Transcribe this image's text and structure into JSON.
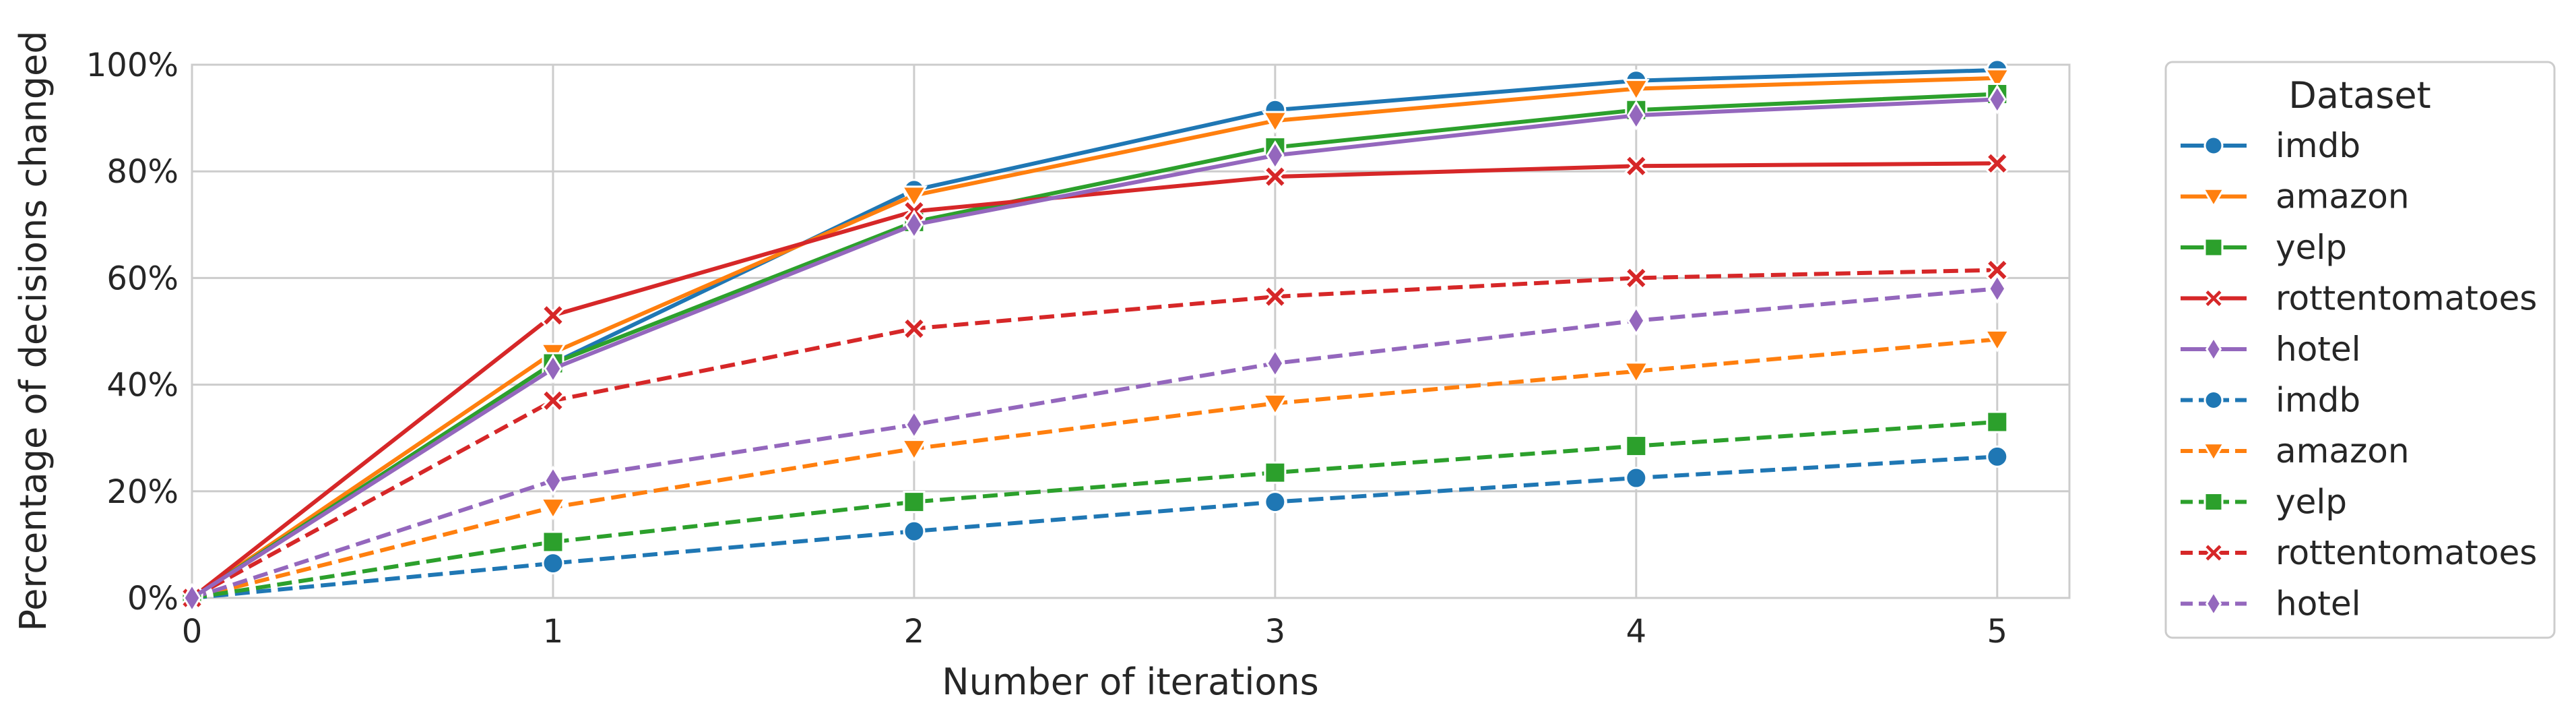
{
  "chart_data": {
    "type": "line",
    "xlabel": "Number of iterations",
    "ylabel": "Percentage of decisions changed",
    "x": [
      0,
      1,
      2,
      3,
      4,
      5
    ],
    "xlim": [
      0,
      5.2
    ],
    "ylim": [
      0,
      100
    ],
    "xticks": [
      "0",
      "1",
      "2",
      "3",
      "4",
      "5"
    ],
    "yticks": [
      "0%",
      "20%",
      "40%",
      "60%",
      "80%",
      "100%"
    ],
    "grid": true,
    "legend": {
      "title": "Dataset",
      "placement": "outside-right"
    },
    "series": [
      {
        "name": "imdb",
        "color": "#1f77b4",
        "linestyle": "solid",
        "marker": "circle",
        "values": [
          0,
          44,
          76.5,
          91.5,
          97,
          99
        ]
      },
      {
        "name": "amazon",
        "color": "#ff7f0e",
        "linestyle": "solid",
        "marker": "triangle-down",
        "values": [
          0,
          46,
          75.5,
          89.5,
          95.5,
          97.5
        ]
      },
      {
        "name": "yelp",
        "color": "#2ca02c",
        "linestyle": "solid",
        "marker": "square",
        "values": [
          0,
          44,
          70.5,
          84.5,
          91.5,
          94.5
        ]
      },
      {
        "name": "rottentomatoes",
        "color": "#d62728",
        "linestyle": "solid",
        "marker": "x",
        "values": [
          0,
          53,
          72.5,
          79,
          81,
          81.5
        ]
      },
      {
        "name": "hotel",
        "color": "#9467bd",
        "linestyle": "solid",
        "marker": "diamond",
        "values": [
          0,
          43,
          70,
          83,
          90.5,
          93.5
        ]
      },
      {
        "name": "imdb",
        "color": "#1f77b4",
        "linestyle": "dashed",
        "marker": "circle",
        "values": [
          0,
          6.5,
          12.5,
          18,
          22.5,
          26.5
        ]
      },
      {
        "name": "amazon",
        "color": "#ff7f0e",
        "linestyle": "dashed",
        "marker": "triangle-down",
        "values": [
          0,
          17,
          28,
          36.5,
          42.5,
          48.5
        ]
      },
      {
        "name": "yelp",
        "color": "#2ca02c",
        "linestyle": "dashed",
        "marker": "square",
        "values": [
          0,
          10.5,
          18,
          23.5,
          28.5,
          33
        ]
      },
      {
        "name": "rottentomatoes",
        "color": "#d62728",
        "linestyle": "dashed",
        "marker": "x",
        "values": [
          0,
          37,
          50.5,
          56.5,
          60,
          61.5
        ]
      },
      {
        "name": "hotel",
        "color": "#9467bd",
        "linestyle": "dashed",
        "marker": "diamond",
        "values": [
          0,
          22,
          32.5,
          44,
          52,
          58
        ]
      }
    ]
  }
}
